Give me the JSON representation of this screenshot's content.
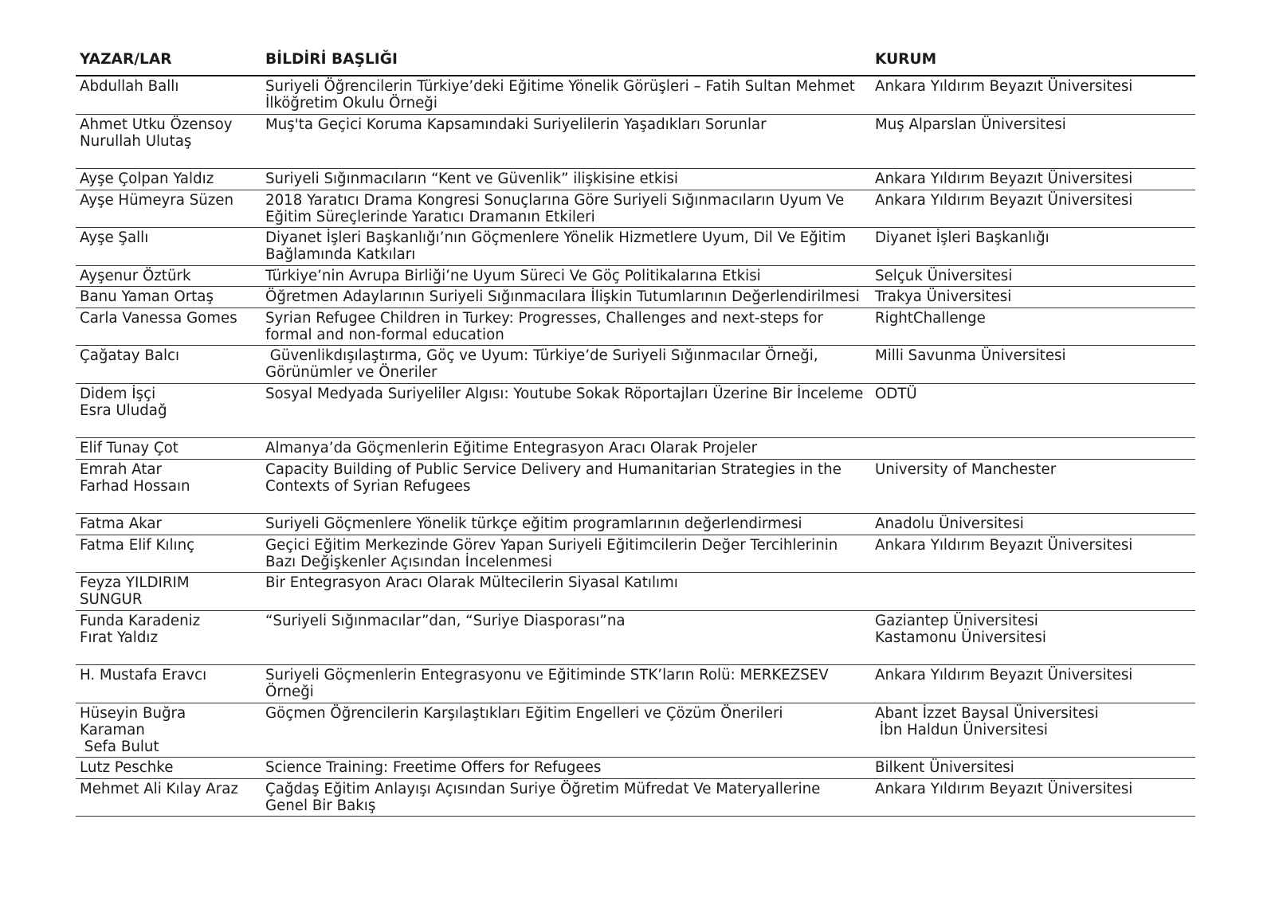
{
  "colors": {
    "background": "#ffffff",
    "text": "#1b1b1b",
    "header_rule": "#161616",
    "row_rule": "#333333"
  },
  "table": {
    "columns": [
      {
        "key": "authors",
        "label": "YAZAR/LAR"
      },
      {
        "key": "title",
        "label": "BİLDİRİ BAŞLIĞI"
      },
      {
        "key": "kurum",
        "label": "KURUM"
      }
    ],
    "rows": [
      {
        "authors": [
          "Abdullah Ballı"
        ],
        "title": "Suriyeli Öğrencilerin Türkiye’deki Eğitime Yönelik Görüşleri – Fatih Sultan Mehmet İlköğretim Okulu Örneği",
        "kurum": [
          "Ankara Yıldırım Beyazıt Üniversitesi"
        ]
      },
      {
        "authors": [
          "Ahmet Utku Özensoy",
          "Nurullah Ulutaş",
          ""
        ],
        "title": "Muş'ta Geçici Koruma Kapsamındaki Suriyelilerin Yaşadıkları Sorunlar",
        "kurum": [
          "Muş Alparslan Üniversitesi"
        ]
      },
      {
        "authors": [
          "Ayşe Çolpan Yaldız"
        ],
        "title": "Suriyeli Sığınmacıların “Kent ve Güvenlik” ilişkisine etkisi",
        "kurum": [
          "Ankara Yıldırım Beyazıt Üniversitesi"
        ]
      },
      {
        "authors": [
          "Ayşe Hümeyra Süzen"
        ],
        "title": "2018 Yaratıcı Drama Kongresi Sonuçlarına Göre Suriyeli Sığınmacıların Uyum Ve Eğitim Süreçlerinde Yaratıcı Dramanın Etkileri",
        "kurum": [
          "Ankara Yıldırım Beyazıt Üniversitesi"
        ]
      },
      {
        "authors": [
          "Ayşe Şallı"
        ],
        "title": "Diyanet İşleri Başkanlığı’nın Göçmenlere Yönelik Hizmetlere Uyum, Dil Ve Eğitim Bağlamında Katkıları",
        "kurum": [
          "Diyanet İşleri Başkanlığı"
        ]
      },
      {
        "authors": [
          "Ayşenur Öztürk"
        ],
        "title": "Türkiye’nin Avrupa Birliği’ne Uyum Süreci Ve Göç Politikalarına Etkisi",
        "kurum": [
          "Selçuk Üniversitesi"
        ]
      },
      {
        "authors": [
          "Banu Yaman Ortaş"
        ],
        "title": "Öğretmen Adaylarının Suriyeli Sığınmacılara İlişkin Tutumlarının Değerlendirilmesi",
        "kurum": [
          "Trakya Üniversitesi"
        ]
      },
      {
        "authors": [
          "Carla Vanessa Gomes"
        ],
        "title": "Syrian Refugee Children in Turkey: Progresses, Challenges and next-steps for formal and non-formal education",
        "kurum": [
          "RightChallenge"
        ]
      },
      {
        "authors": [
          "Çağatay Balcı"
        ],
        "title": " Güvenlikdışılaştırma, Göç ve Uyum: Türkiye’de Suriyeli Sığınmacılar Örneği, Görünümler ve Öneriler",
        "kurum": [
          "Milli Savunma Üniversitesi"
        ]
      },
      {
        "authors": [
          "Didem İşçi",
          "Esra Uludağ",
          ""
        ],
        "title": "Sosyal Medyada Suriyeliler Algısı: Youtube Sokak Röportajları Üzerine Bir İnceleme",
        "kurum": [
          "ODTÜ"
        ]
      },
      {
        "authors": [
          "Elif Tunay Çot"
        ],
        "title": "Almanya’da Göçmenlerin Eğitime Entegrasyon Aracı Olarak Projeler",
        "kurum": []
      },
      {
        "authors": [
          "Emrah Atar",
          "Farhad Hossaın",
          ""
        ],
        "title": "Capacity Building of Public Service Delivery and Humanitarian Strategies in the Contexts of Syrian Refugees",
        "kurum": [
          "University of Manchester"
        ]
      },
      {
        "authors": [
          "Fatma Akar"
        ],
        "title": "Suriyeli Göçmenlere Yönelik türkçe eğitim programlarının değerlendirmesi",
        "kurum": [
          "Anadolu Üniversitesi"
        ]
      },
      {
        "authors": [
          "Fatma Elif Kılınç"
        ],
        "title": "Geçici Eğitim Merkezinde Görev Yapan Suriyeli Eğitimcilerin Değer Tercihlerinin Bazı Değişkenler Açısından İncelenmesi",
        "kurum": [
          "Ankara Yıldırım Beyazıt Üniversitesi"
        ]
      },
      {
        "authors": [
          "Feyza YILDIRIM",
          "SUNGUR"
        ],
        "title": "Bir Entegrasyon Aracı Olarak Mültecilerin Siyasal Katılımı",
        "kurum": []
      },
      {
        "authors": [
          "Funda Karadeniz",
          "Fırat Yaldız",
          ""
        ],
        "title": "“Suriyeli Sığınmacılar”dan, “Suriye Diasporası”na",
        "kurum": [
          "Gaziantep Üniversitesi",
          "Kastamonu Üniversitesi"
        ]
      },
      {
        "authors": [
          "H. Mustafa Eravcı"
        ],
        "title": "Suriyeli Göçmenlerin Entegrasyonu ve Eğitiminde STK’ların Rolü: MERKEZSEV Örneği",
        "kurum": [
          "Ankara Yıldırım Beyazıt Üniversitesi"
        ]
      },
      {
        "authors": [
          "Hüseyin Buğra",
          "Karaman",
          " Sefa Bulut"
        ],
        "title": "Göçmen Öğrencilerin Karşılaştıkları Eğitim Engelleri ve Çözüm Önerileri",
        "kurum": [
          "Abant İzzet Baysal Üniversitesi",
          " İbn Haldun Üniversitesi"
        ]
      },
      {
        "authors": [
          "Lutz Peschke"
        ],
        "title": "Science Training: Freetime Offers for Refugees",
        "kurum": [
          "Bilkent Üniversitesi"
        ]
      },
      {
        "authors": [
          "Mehmet Ali Kılay Araz"
        ],
        "title": "Çağdaş Eğitim Anlayışı Açısından Suriye Öğretim Müfredat Ve Materyallerine Genel Bir Bakış",
        "kurum": [
          "Ankara Yıldırım Beyazıt Üniversitesi"
        ]
      }
    ]
  }
}
